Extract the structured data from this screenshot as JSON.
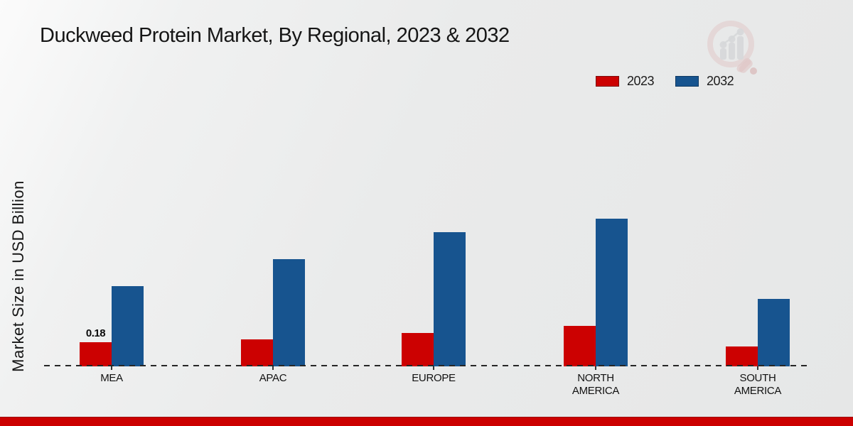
{
  "page": {
    "title": "Duckweed Protein Market, By Regional, 2023 & 2032"
  },
  "y_axis": {
    "label": "Market Size in USD Billion"
  },
  "legend": {
    "items": [
      {
        "label": "2023",
        "color": "#cc0101"
      },
      {
        "label": "2032",
        "color": "#17548f"
      }
    ]
  },
  "chart_data": {
    "type": "bar",
    "title": "Duckweed Protein Market, By Regional, 2023 & 2032",
    "xlabel": "",
    "ylabel": "Market Size in USD Billion",
    "categories": [
      "MEA",
      "APAC",
      "EUROPE",
      "NORTH AMERICA",
      "SOUTH AMERICA"
    ],
    "series": [
      {
        "name": "2023",
        "color": "#cc0101",
        "values": [
          0.18,
          0.2,
          0.25,
          0.3,
          0.15
        ]
      },
      {
        "name": "2032",
        "color": "#17548f",
        "values": [
          0.6,
          0.8,
          1.0,
          1.1,
          0.5
        ]
      }
    ],
    "annotations": [
      {
        "series": "2023",
        "category": "MEA",
        "text": "0.18"
      }
    ],
    "ylim": [
      0,
      2
    ],
    "grid": false,
    "legend_position": "top-right",
    "baseline_style": "dashed"
  },
  "icons": {
    "watermark": "magnifier-bar-chart-logo"
  },
  "footer": {
    "band_color": "#cc0000"
  }
}
